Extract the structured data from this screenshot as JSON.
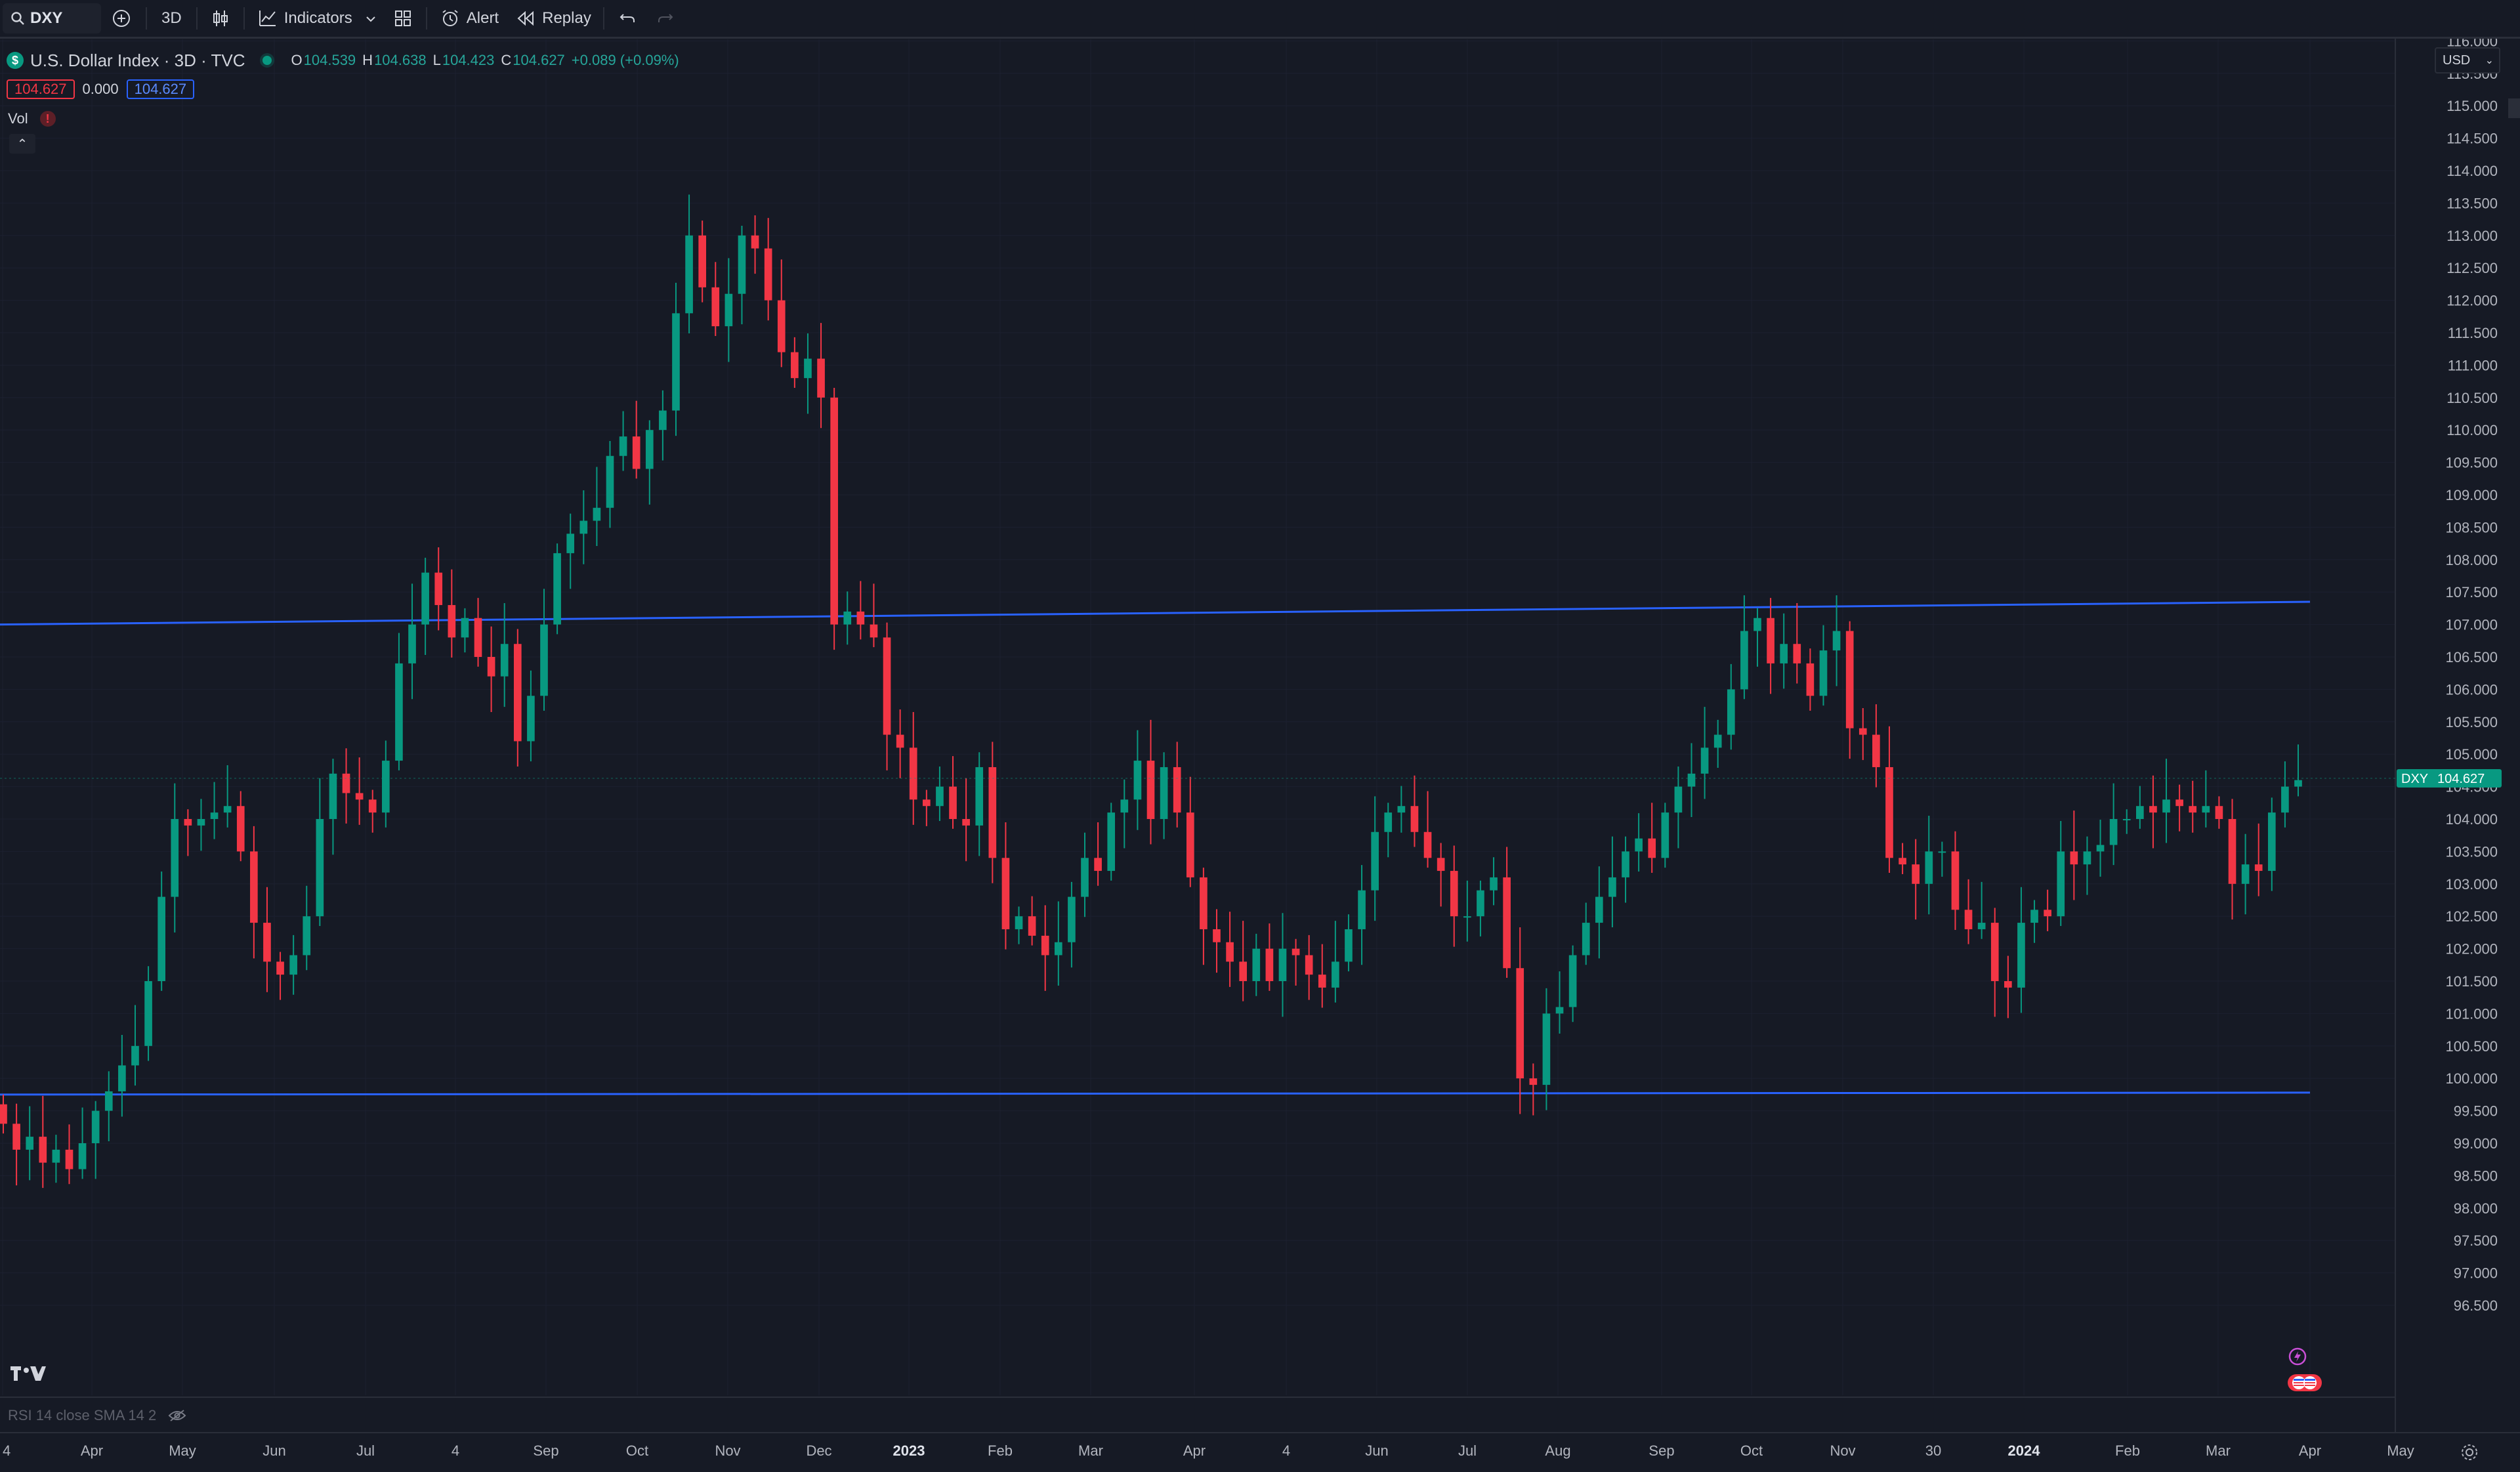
{
  "toolbar": {
    "symbol": "DXY",
    "interval": "3D",
    "indicators_label": "Indicators",
    "alert_label": "Alert",
    "replay_label": "Replay"
  },
  "legend": {
    "symbol_logo": "$",
    "title": "U.S. Dollar Index · 3D · TVC",
    "ohlc": [
      {
        "key": "O",
        "value": "104.539"
      },
      {
        "key": "H",
        "value": "104.638"
      },
      {
        "key": "L",
        "value": "104.423"
      },
      {
        "key": "C",
        "value": "104.627"
      }
    ],
    "change": "+0.089 (+0.09%)",
    "value_sell": "104.627",
    "value_spread": "0.000",
    "value_buy": "104.627",
    "vol_label": "Vol",
    "vol_warning": "!",
    "collapse_glyph": "⌃"
  },
  "currency": {
    "value": "USD",
    "chevron": "⌄"
  },
  "price_label": {
    "symbol": "DXY",
    "value": "104.627"
  },
  "rsi_label": "RSI 14 close SMA 14 2",
  "colors": {
    "bull": "#089981",
    "bear": "#f23645",
    "trend_line": "#2962ff",
    "background": "#161a25",
    "grid": "#1c2030"
  },
  "chart_data": {
    "type": "candlestick",
    "symbol": "DXY",
    "interval": "3D",
    "price_ticks": [
      "116.000",
      "115.500",
      "115.000",
      "114.500",
      "114.000",
      "113.500",
      "113.000",
      "112.500",
      "112.000",
      "111.500",
      "111.000",
      "110.500",
      "110.000",
      "109.500",
      "109.000",
      "108.500",
      "108.000",
      "107.500",
      "107.000",
      "106.500",
      "106.000",
      "105.500",
      "105.000",
      "104.500",
      "104.000",
      "103.500",
      "103.000",
      "102.500",
      "102.000",
      "101.500",
      "101.000",
      "100.500",
      "100.000",
      "99.500",
      "99.000",
      "98.500",
      "98.000",
      "97.500",
      "97.000",
      "96.500"
    ],
    "time_ticks": [
      {
        "label": "4",
        "bold": false
      },
      {
        "label": "Apr",
        "bold": false
      },
      {
        "label": "May",
        "bold": false
      },
      {
        "label": "Jun",
        "bold": false
      },
      {
        "label": "Jul",
        "bold": false
      },
      {
        "label": "4",
        "bold": false
      },
      {
        "label": "Sep",
        "bold": false
      },
      {
        "label": "Oct",
        "bold": false
      },
      {
        "label": "Nov",
        "bold": false
      },
      {
        "label": "Dec",
        "bold": false
      },
      {
        "label": "2023",
        "bold": true
      },
      {
        "label": "Feb",
        "bold": false
      },
      {
        "label": "Mar",
        "bold": false
      },
      {
        "label": "Apr",
        "bold": false
      },
      {
        "label": "4",
        "bold": false
      },
      {
        "label": "Jun",
        "bold": false
      },
      {
        "label": "Jul",
        "bold": false
      },
      {
        "label": "Aug",
        "bold": false
      },
      {
        "label": "Sep",
        "bold": false
      },
      {
        "label": "Oct",
        "bold": false
      },
      {
        "label": "Nov",
        "bold": false
      },
      {
        "label": "30",
        "bold": false
      },
      {
        "label": "2024",
        "bold": true
      },
      {
        "label": "Feb",
        "bold": false
      },
      {
        "label": "Mar",
        "bold": false
      },
      {
        "label": "Apr",
        "bold": false
      },
      {
        "label": "May",
        "bold": false
      }
    ],
    "trend_lines": [
      {
        "name": "upper-channel",
        "from": 107.0,
        "to": 107.35
      },
      {
        "name": "lower-channel",
        "from": 99.75,
        "to": 99.78
      }
    ],
    "closes": [
      99.3,
      98.9,
      99.1,
      98.7,
      98.9,
      98.6,
      99.0,
      99.5,
      99.8,
      100.2,
      100.5,
      101.5,
      102.8,
      104.0,
      103.9,
      104.0,
      104.1,
      104.2,
      103.5,
      102.4,
      101.8,
      101.6,
      101.9,
      102.5,
      104.0,
      104.7,
      104.4,
      104.3,
      104.1,
      104.9,
      106.4,
      107.0,
      107.8,
      107.3,
      106.8,
      107.1,
      106.5,
      106.2,
      106.7,
      105.2,
      105.9,
      107.0,
      108.1,
      108.4,
      108.6,
      108.8,
      109.6,
      109.9,
      109.4,
      110.0,
      110.3,
      111.8,
      113.0,
      112.2,
      111.6,
      112.1,
      113.0,
      112.8,
      112.0,
      111.2,
      110.8,
      111.1,
      110.5,
      107.0,
      107.2,
      107.0,
      106.8,
      105.3,
      105.1,
      104.3,
      104.2,
      104.5,
      104.0,
      103.9,
      104.8,
      103.4,
      102.3,
      102.5,
      102.2,
      101.9,
      102.1,
      102.8,
      103.4,
      103.2,
      104.1,
      104.3,
      104.9,
      104.0,
      104.8,
      104.1,
      103.1,
      102.3,
      102.1,
      101.8,
      101.5,
      102.0,
      101.5,
      102.0,
      101.9,
      101.6,
      101.4,
      101.8,
      102.3,
      102.9,
      103.8,
      104.1,
      104.2,
      103.8,
      103.4,
      103.2,
      102.5,
      102.5,
      102.9,
      103.1,
      101.7,
      100.0,
      99.9,
      101.0,
      101.1,
      101.9,
      102.4,
      102.8,
      103.1,
      103.5,
      103.7,
      103.4,
      104.1,
      104.5,
      104.7,
      105.1,
      105.3,
      106.0,
      106.9,
      107.1,
      106.4,
      106.7,
      106.4,
      105.9,
      106.6,
      106.9,
      105.4,
      105.3,
      104.8,
      103.4,
      103.3,
      103.0,
      103.5,
      103.5,
      102.6,
      102.3,
      102.4,
      101.5,
      101.4,
      102.4,
      102.6,
      102.5,
      103.5,
      103.3,
      103.5,
      103.6,
      104.0,
      104.0,
      104.2,
      104.1,
      104.3,
      104.2,
      104.1,
      104.2,
      104.0,
      103.0,
      103.3,
      103.2,
      104.1,
      104.5,
      104.6
    ]
  }
}
